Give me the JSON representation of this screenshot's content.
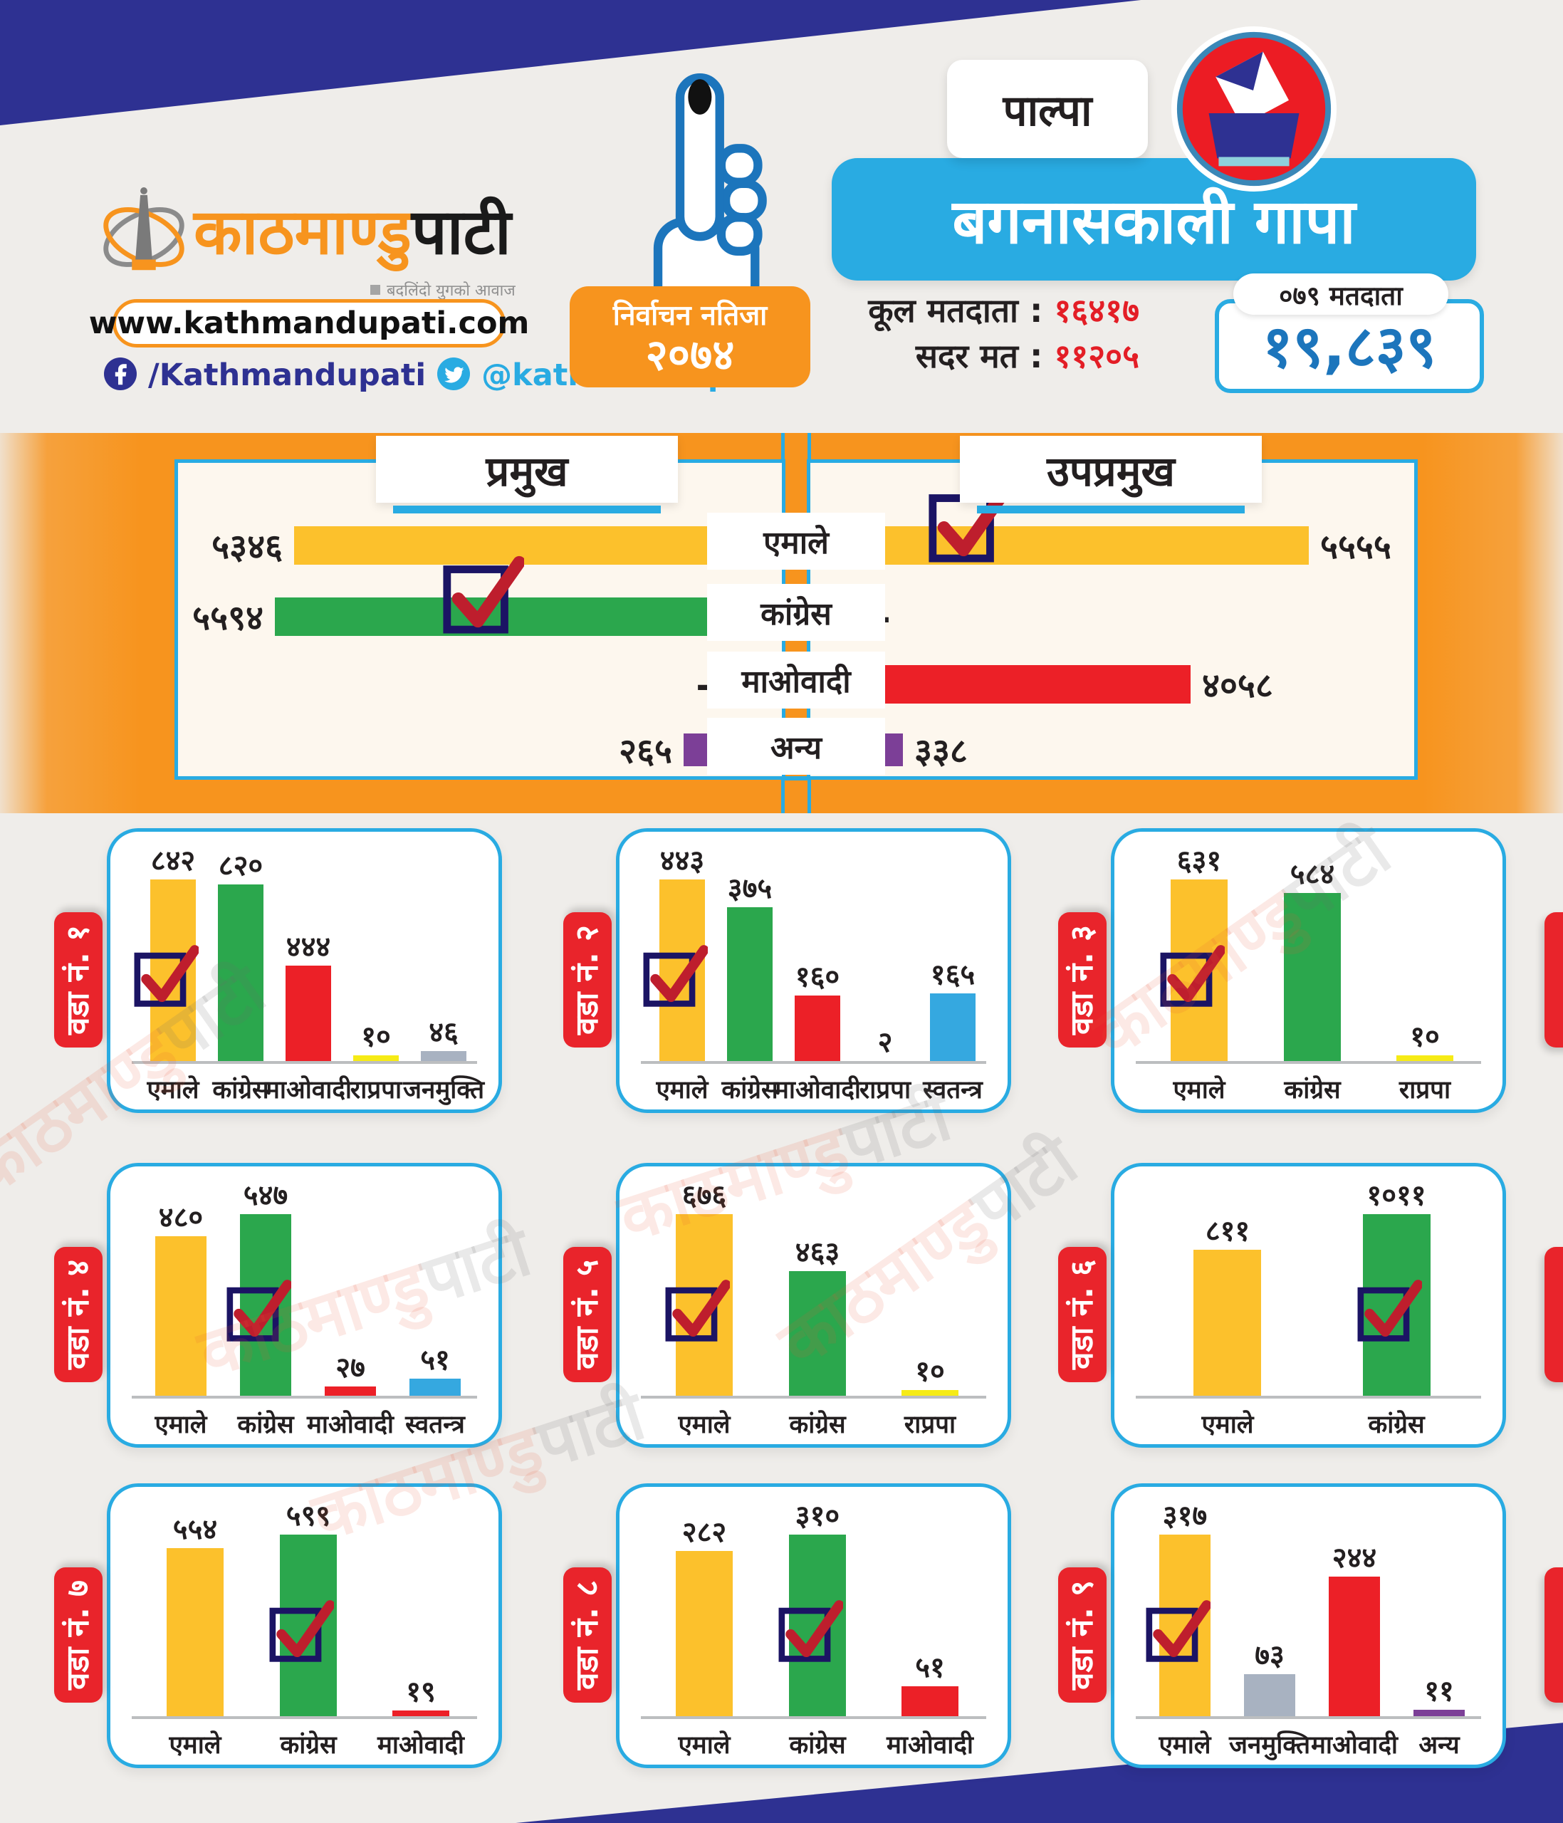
{
  "header": {
    "brand_primary": "काठमाण्डु",
    "brand_secondary": "पाटी",
    "brand_tagline": "बदलिंदो युगको आवाज",
    "website": "www.kathmandupati.com",
    "facebook": "/Kathmandupati",
    "twitter": "@kathmandupati1",
    "badge_line1": "निर्वाचन नतिजा",
    "badge_line2": "२०७४",
    "district": "पाल्पा",
    "municipality": "बगनासकाली गापा",
    "total_voters_label": "कूल मतदाता :",
    "total_voters_value": "१६४१७",
    "valid_votes_label": "सदर मत :",
    "valid_votes_value": "११२०५",
    "voters_pill": "०७९ मतदाता",
    "voters_value": "१९,८३९"
  },
  "party_colors": {
    "एमाले": "#FCC12C",
    "कांग्रेस": "#2BA74D",
    "माओवादी": "#EC2027",
    "राप्रपा": "#F6EB16",
    "जनमुक्ति": "#A8B2C1",
    "स्वतन्त्र": "#35A8E0",
    "अन्य": "#7C3F97"
  },
  "accent_colors": {
    "navy": "#2E3192",
    "orange": "#F7941E",
    "sky": "#29ABE2",
    "red": "#E9242B",
    "check_red": "#BE1E2D",
    "check_box_navy": "#1B1464",
    "value_blue": "#1C75BC",
    "cream": "#FDF7EE"
  },
  "center_parties": [
    "एमाले",
    "कांग्रेस",
    "माओवादी",
    "अन्य"
  ],
  "mayor_chart": {
    "title": "प्रमुख",
    "rows": [
      {
        "party": "एमाले",
        "display": "५३४६",
        "value": 5346,
        "kind": "bar",
        "winner": false
      },
      {
        "party": "कांग्रेस",
        "display": "५५९४",
        "value": 5594,
        "kind": "bar",
        "winner": true
      },
      {
        "party": "माओवादी",
        "display": "–",
        "value": null,
        "kind": "dash",
        "winner": false
      },
      {
        "party": "अन्य",
        "display": "२६५",
        "value": 265,
        "kind": "square",
        "winner": false
      }
    ]
  },
  "deputy_chart": {
    "title": "उपप्रमुख",
    "rows": [
      {
        "party": "एमाले",
        "display": "५५५५",
        "value": 5555,
        "kind": "bar",
        "winner": true
      },
      {
        "party": "कांग्रेस",
        "display": "–",
        "value": null,
        "kind": "dash",
        "winner": false
      },
      {
        "party": "माओवादी",
        "display": "४०५८",
        "value": 4058,
        "kind": "bar",
        "winner": false
      },
      {
        "party": "अन्य",
        "display": "३३८",
        "value": 338,
        "kind": "square",
        "winner": false
      }
    ]
  },
  "wards": [
    {
      "label": "वडा नं. १",
      "bars": [
        {
          "party": "एमाले",
          "display": "८४२",
          "value": 842,
          "winner": true
        },
        {
          "party": "कांग्रेस",
          "display": "८२०",
          "value": 820,
          "winner": false
        },
        {
          "party": "माओवादी",
          "display": "४४४",
          "value": 444,
          "winner": false
        },
        {
          "party": "राप्रपा",
          "display": "१०",
          "value": 10,
          "winner": false
        },
        {
          "party": "जनमुक्ति",
          "display": "४६",
          "value": 46,
          "winner": false
        }
      ]
    },
    {
      "label": "वडा नं. २",
      "bars": [
        {
          "party": "एमाले",
          "display": "४४३",
          "value": 443,
          "winner": true
        },
        {
          "party": "कांग्रेस",
          "display": "३७५",
          "value": 375,
          "winner": false
        },
        {
          "party": "माओवादी",
          "display": "१६०",
          "value": 160,
          "winner": false
        },
        {
          "party": "राप्रपा",
          "display": "२",
          "value": 2,
          "winner": false
        },
        {
          "party": "स्वतन्त्र",
          "display": "१६५",
          "value": 165,
          "winner": false
        }
      ]
    },
    {
      "label": "वडा नं. ३",
      "bars": [
        {
          "party": "एमाले",
          "display": "६३१",
          "value": 631,
          "winner": true
        },
        {
          "party": "कांग्रेस",
          "display": "५८४",
          "value": 584,
          "winner": false
        },
        {
          "party": "राप्रपा",
          "display": "१०",
          "value": 10,
          "winner": false
        }
      ]
    },
    {
      "label": "वडा नं. ४",
      "bars": [
        {
          "party": "एमाले",
          "display": "४८०",
          "value": 480,
          "winner": false
        },
        {
          "party": "कांग्रेस",
          "display": "५४७",
          "value": 547,
          "winner": true
        },
        {
          "party": "माओवादी",
          "display": "२७",
          "value": 27,
          "winner": false
        },
        {
          "party": "स्वतन्त्र",
          "display": "५१",
          "value": 51,
          "winner": false
        }
      ]
    },
    {
      "label": "वडा नं. ५",
      "bars": [
        {
          "party": "एमाले",
          "display": "६७६",
          "value": 676,
          "winner": true
        },
        {
          "party": "कांग्रेस",
          "display": "४६३",
          "value": 463,
          "winner": false
        },
        {
          "party": "राप्रपा",
          "display": "१०",
          "value": 10,
          "winner": false
        }
      ]
    },
    {
      "label": "वडा नं. ६",
      "bars": [
        {
          "party": "एमाले",
          "display": "८११",
          "value": 811,
          "winner": false
        },
        {
          "party": "कांग्रेस",
          "display": "१०११",
          "value": 1011,
          "winner": true
        }
      ]
    },
    {
      "label": "वडा नं. ७",
      "bars": [
        {
          "party": "एमाले",
          "display": "५५४",
          "value": 554,
          "winner": false
        },
        {
          "party": "कांग्रेस",
          "display": "५९९",
          "value": 599,
          "winner": true
        },
        {
          "party": "माओवादी",
          "display": "१९",
          "value": 19,
          "winner": false
        }
      ]
    },
    {
      "label": "वडा नं. ८",
      "bars": [
        {
          "party": "एमाले",
          "display": "२८२",
          "value": 282,
          "winner": false
        },
        {
          "party": "कांग्रेस",
          "display": "३१०",
          "value": 310,
          "winner": true
        },
        {
          "party": "माओवादी",
          "display": "५१",
          "value": 51,
          "winner": false
        }
      ]
    },
    {
      "label": "वडा नं. ९",
      "bars": [
        {
          "party": "एमाले",
          "display": "३१७",
          "value": 317,
          "winner": true
        },
        {
          "party": "जनमुक्ति",
          "display": "७३",
          "value": 73,
          "winner": false
        },
        {
          "party": "माओवादी",
          "display": "२४४",
          "value": 244,
          "winner": false
        },
        {
          "party": "अन्य",
          "display": "११",
          "value": 11,
          "winner": false
        }
      ]
    }
  ],
  "watermark": {
    "part1": "काठमाण्डु",
    "part2": "पाटी"
  },
  "chart_data": [
    {
      "type": "bar",
      "orientation": "horizontal",
      "title": "प्रमुख",
      "categories": [
        "एमाले",
        "कांग्रेस",
        "माओवादी",
        "अन्य"
      ],
      "values": [
        5346,
        5594,
        null,
        265
      ],
      "winner": "कांग्रेस",
      "note": "null = no candidate (dash shown)"
    },
    {
      "type": "bar",
      "orientation": "horizontal",
      "title": "उपप्रमुख",
      "categories": [
        "एमाले",
        "कांग्रेस",
        "माओवादी",
        "अन्य"
      ],
      "values": [
        5555,
        null,
        4058,
        338
      ],
      "winner": "एमाले"
    },
    {
      "type": "bar",
      "title": "वडा नं. १",
      "categories": [
        "एमाले",
        "कांग्रेस",
        "माओवादी",
        "राप्रपा",
        "जनमुक्ति"
      ],
      "values": [
        842,
        820,
        444,
        10,
        46
      ],
      "winner": "एमाले"
    },
    {
      "type": "bar",
      "title": "वडा नं. २",
      "categories": [
        "एमाले",
        "कांग्रेस",
        "माओवादी",
        "राप्रपा",
        "स्वतन्त्र"
      ],
      "values": [
        443,
        375,
        160,
        2,
        165
      ],
      "winner": "एमाले"
    },
    {
      "type": "bar",
      "title": "वडा नं. ३",
      "categories": [
        "एमाले",
        "कांग्रेस",
        "राप्रपा"
      ],
      "values": [
        631,
        584,
        10
      ],
      "winner": "एमाले"
    },
    {
      "type": "bar",
      "title": "वडा नं. ४",
      "categories": [
        "एमाले",
        "कांग्रेस",
        "माओवादी",
        "स्वतन्त्र"
      ],
      "values": [
        480,
        547,
        27,
        51
      ],
      "winner": "कांग्रेस"
    },
    {
      "type": "bar",
      "title": "वडा नं. ५",
      "categories": [
        "एमाले",
        "कांग्रेस",
        "राप्रपा"
      ],
      "values": [
        676,
        463,
        10
      ],
      "winner": "एमाले"
    },
    {
      "type": "bar",
      "title": "वडा नं. ६",
      "categories": [
        "एमाले",
        "कांग्रेस"
      ],
      "values": [
        811,
        1011
      ],
      "winner": "कांग्रेस"
    },
    {
      "type": "bar",
      "title": "वडा नं. ७",
      "categories": [
        "एमाले",
        "कांग्रेस",
        "माओवादी"
      ],
      "values": [
        554,
        599,
        19
      ],
      "winner": "कांग्रेस"
    },
    {
      "type": "bar",
      "title": "वडा नं. ८",
      "categories": [
        "एमाले",
        "कांग्रेस",
        "माओवादी"
      ],
      "values": [
        282,
        310,
        51
      ],
      "winner": "कांग्रेस"
    },
    {
      "type": "bar",
      "title": "वडा नं. ९",
      "categories": [
        "एमाले",
        "जनमुक्ति",
        "माओवादी",
        "अन्य"
      ],
      "values": [
        317,
        73,
        244,
        11
      ],
      "winner": "एमाले"
    }
  ]
}
